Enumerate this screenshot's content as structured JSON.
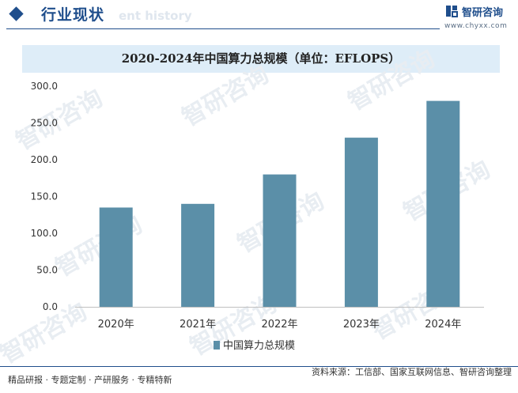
{
  "header": {
    "title": "行业现状",
    "title_en": "ent history",
    "logo_name": "智研咨询",
    "logo_url": "www.chyxx.com"
  },
  "watermark": {
    "text": "智研咨询"
  },
  "chart_data": {
    "type": "bar",
    "title": "2020-2024年中国算力总规模（单位：EFLOPS）",
    "categories": [
      "2020年",
      "2021年",
      "2022年",
      "2023年",
      "2024年"
    ],
    "series": [
      {
        "name": "中国算力总规模",
        "values": [
          135,
          140,
          180,
          230,
          280
        ],
        "color": "#5b8fa8"
      }
    ],
    "ylim": [
      0,
      300
    ],
    "yticks": [
      0,
      50,
      100,
      150,
      200,
      250,
      300
    ],
    "ytick_labels": [
      "0.0",
      "50.0",
      "100.0",
      "150.0",
      "200.0",
      "250.0",
      "300.0"
    ],
    "xlabel": "",
    "ylabel": "",
    "grid": false,
    "legend": "bottom"
  },
  "footer": {
    "left": "精品研报 · 专题定制 · 产研服务 · 专精特新",
    "source": "资料来源：工信部、国家互联网信息、智研咨询整理"
  }
}
